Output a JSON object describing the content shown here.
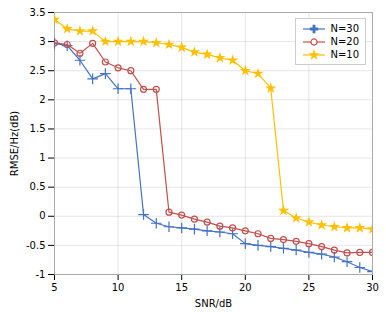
{
  "chart_data": {
    "type": "line",
    "xlabel": "SNR/dB",
    "ylabel": "RMSE/Hz(dB)",
    "x": [
      5,
      6,
      7,
      8,
      9,
      10,
      11,
      12,
      13,
      14,
      15,
      16,
      17,
      18,
      19,
      20,
      21,
      22,
      23,
      24,
      25,
      26,
      27,
      28,
      29,
      30
    ],
    "series": [
      {
        "name": "N=30",
        "color": "#4472C4",
        "marker": "plus",
        "values": [
          2.97,
          2.93,
          2.68,
          2.36,
          2.45,
          2.19,
          2.19,
          0.03,
          -0.12,
          -0.18,
          -0.2,
          -0.22,
          -0.25,
          -0.27,
          -0.3,
          -0.47,
          -0.5,
          -0.52,
          -0.55,
          -0.58,
          -0.62,
          -0.65,
          -0.7,
          -0.78,
          -0.88,
          -0.95
        ]
      },
      {
        "name": "N=20",
        "color": "#C0504D",
        "marker": "circle",
        "values": [
          2.98,
          2.95,
          2.8,
          2.97,
          2.65,
          2.55,
          2.5,
          2.18,
          2.18,
          0.07,
          0.02,
          -0.05,
          -0.1,
          -0.17,
          -0.2,
          -0.25,
          -0.3,
          -0.38,
          -0.4,
          -0.43,
          -0.47,
          -0.52,
          -0.58,
          -0.63,
          -0.62,
          -0.62
        ]
      },
      {
        "name": "N=10",
        "color": "#FFC000",
        "marker": "star",
        "values": [
          3.38,
          3.22,
          3.18,
          3.18,
          3.0,
          3.0,
          3.0,
          3.0,
          2.98,
          2.95,
          2.9,
          2.82,
          2.78,
          2.72,
          2.68,
          2.5,
          2.45,
          2.2,
          0.1,
          -0.03,
          -0.1,
          -0.15,
          -0.18,
          -0.2,
          -0.2,
          -0.22
        ]
      }
    ],
    "xlim": [
      5,
      30
    ],
    "ylim": [
      -1,
      3.5
    ],
    "xticks": [
      5,
      10,
      15,
      20,
      25,
      30
    ],
    "yticks": [
      -1,
      -0.5,
      0,
      0.5,
      1,
      1.5,
      2,
      2.5,
      3,
      3.5
    ],
    "grid": true,
    "legend": "upper right"
  }
}
